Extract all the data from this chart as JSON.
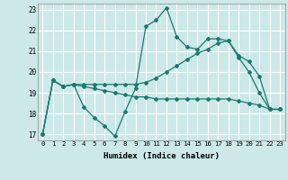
{
  "title": "",
  "xlabel": "Humidex (Indice chaleur)",
  "xlim": [
    -0.5,
    23.5
  ],
  "ylim": [
    16.7,
    23.3
  ],
  "yticks": [
    17,
    18,
    19,
    20,
    21,
    22,
    23
  ],
  "xticks": [
    0,
    1,
    2,
    3,
    4,
    5,
    6,
    7,
    8,
    9,
    10,
    11,
    12,
    13,
    14,
    15,
    16,
    17,
    18,
    19,
    20,
    21,
    22,
    23
  ],
  "bg_color": "#cce8e8",
  "grid_color": "#ffffff",
  "line_color": "#1a7a6e",
  "lines": [
    [
      17.0,
      19.6,
      19.3,
      19.4,
      18.3,
      17.8,
      17.4,
      16.9,
      18.1,
      19.2,
      22.2,
      22.5,
      23.1,
      21.7,
      21.2,
      21.1,
      21.6,
      21.6,
      21.5,
      20.7,
      20.0,
      19.0,
      18.2,
      18.2
    ],
    [
      17.0,
      19.6,
      19.3,
      19.4,
      19.4,
      19.4,
      19.4,
      19.4,
      19.4,
      19.4,
      19.5,
      19.7,
      20.0,
      20.3,
      20.6,
      20.9,
      21.1,
      21.4,
      21.5,
      20.8,
      20.5,
      19.8,
      18.2,
      18.2
    ],
    [
      17.0,
      19.6,
      19.3,
      19.4,
      19.3,
      19.2,
      19.1,
      19.0,
      18.9,
      18.8,
      18.8,
      18.7,
      18.7,
      18.7,
      18.7,
      18.7,
      18.7,
      18.7,
      18.7,
      18.6,
      18.5,
      18.4,
      18.2,
      18.2
    ]
  ]
}
